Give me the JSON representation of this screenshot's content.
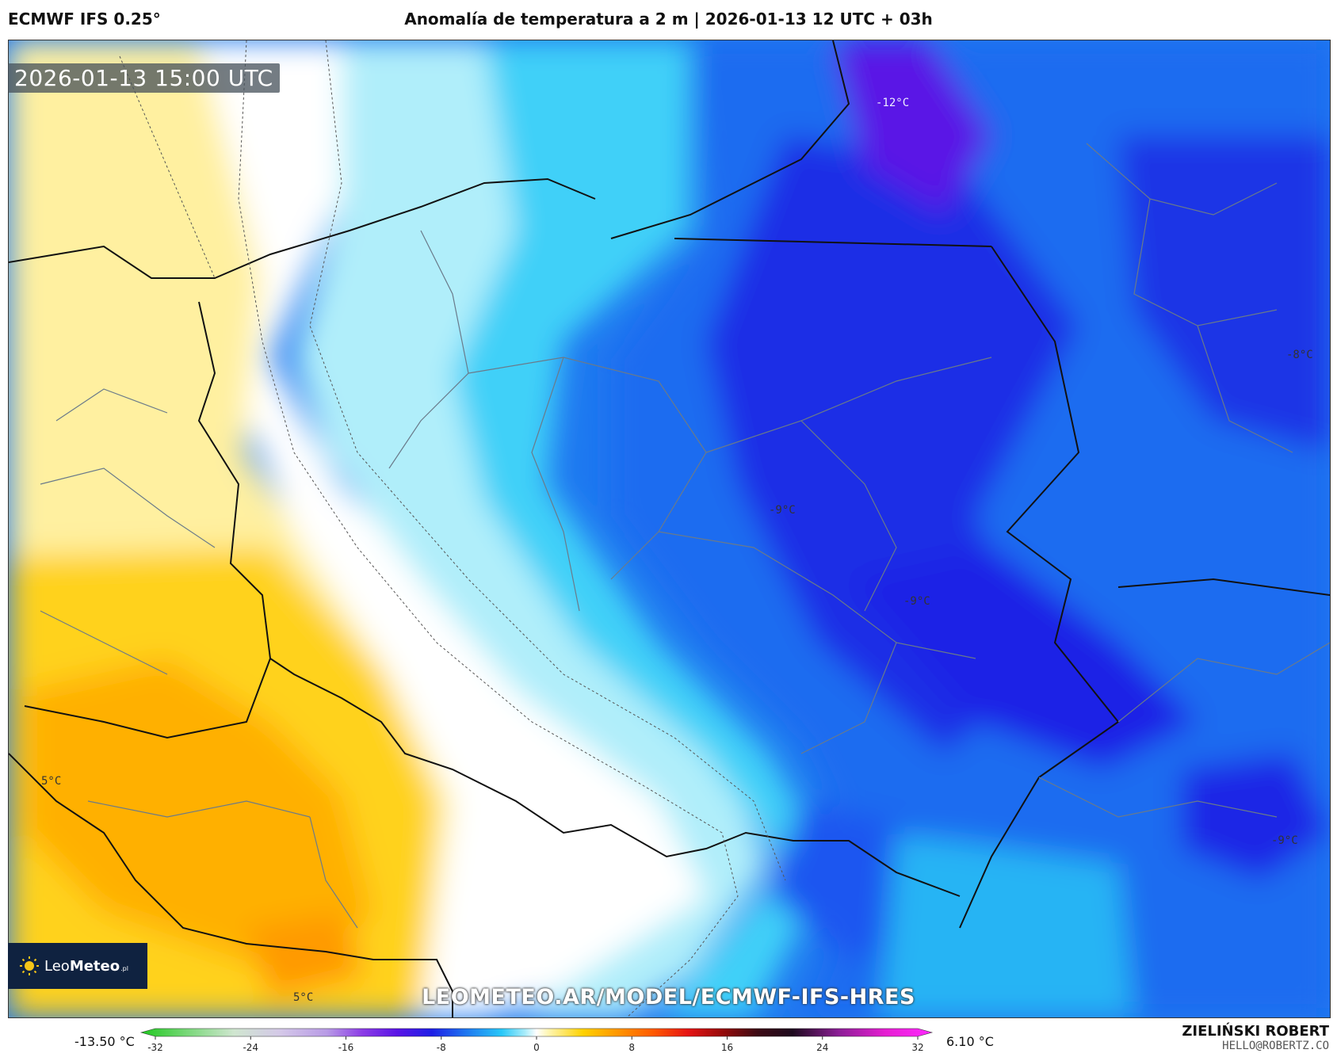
{
  "header": {
    "model": "ECMWF IFS 0.25°",
    "title": "Anomalía de temperatura a 2 m | 2026-01-13 12 UTC + 03h"
  },
  "map": {
    "timestamp": "2026-01-13 15:00 UTC",
    "watermark_url": "LEOMETEO.AR/MODEL/ECMWF-IFS-HRES",
    "labels": [
      {
        "text": "-12°C",
        "color": "light"
      },
      {
        "text": "-8°C"
      },
      {
        "text": "-9°C"
      },
      {
        "text": "-9°C"
      },
      {
        "text": "-9°C"
      },
      {
        "text": "5°C"
      },
      {
        "text": "5°C"
      }
    ]
  },
  "logo": {
    "brand_light": "Leo",
    "brand_bold": "Meteo",
    "tld": ".pl"
  },
  "colorbar": {
    "min_label": "-13.50 °C",
    "max_label": "6.10 °C",
    "ticks": [
      "-32",
      "-24",
      "-16",
      "-8",
      "0",
      "8",
      "16",
      "24",
      "32"
    ],
    "range": [
      -34,
      34
    ],
    "stops": [
      {
        "v": -34,
        "c": "#1ec81e"
      },
      {
        "v": -30,
        "c": "#7ad87a"
      },
      {
        "v": -26,
        "c": "#d0e6d0"
      },
      {
        "v": -22,
        "c": "#d4c8e8"
      },
      {
        "v": -18,
        "c": "#b89ae6"
      },
      {
        "v": -15,
        "c": "#8c3ce6"
      },
      {
        "v": -12,
        "c": "#5a14e6"
      },
      {
        "v": -9,
        "c": "#1e1ee6"
      },
      {
        "v": -6,
        "c": "#1e78f0"
      },
      {
        "v": -3,
        "c": "#28c8f8"
      },
      {
        "v": -1,
        "c": "#a8ecfa"
      },
      {
        "v": 0,
        "c": "#ffffff"
      },
      {
        "v": 1,
        "c": "#fff6b4"
      },
      {
        "v": 4,
        "c": "#ffd200"
      },
      {
        "v": 7,
        "c": "#ff9600"
      },
      {
        "v": 10,
        "c": "#ff5a00"
      },
      {
        "v": 13,
        "c": "#e61414"
      },
      {
        "v": 16,
        "c": "#960a0a"
      },
      {
        "v": 19,
        "c": "#3c0a14"
      },
      {
        "v": 22,
        "c": "#1e0a1e"
      },
      {
        "v": 26,
        "c": "#8c1e96"
      },
      {
        "v": 30,
        "c": "#e61ed2"
      },
      {
        "v": 34,
        "c": "#ff28ff"
      }
    ]
  },
  "author": {
    "name": "ZIELIŃSKI ROBERT",
    "email": "HELLO@ROBERTZ.CO"
  }
}
